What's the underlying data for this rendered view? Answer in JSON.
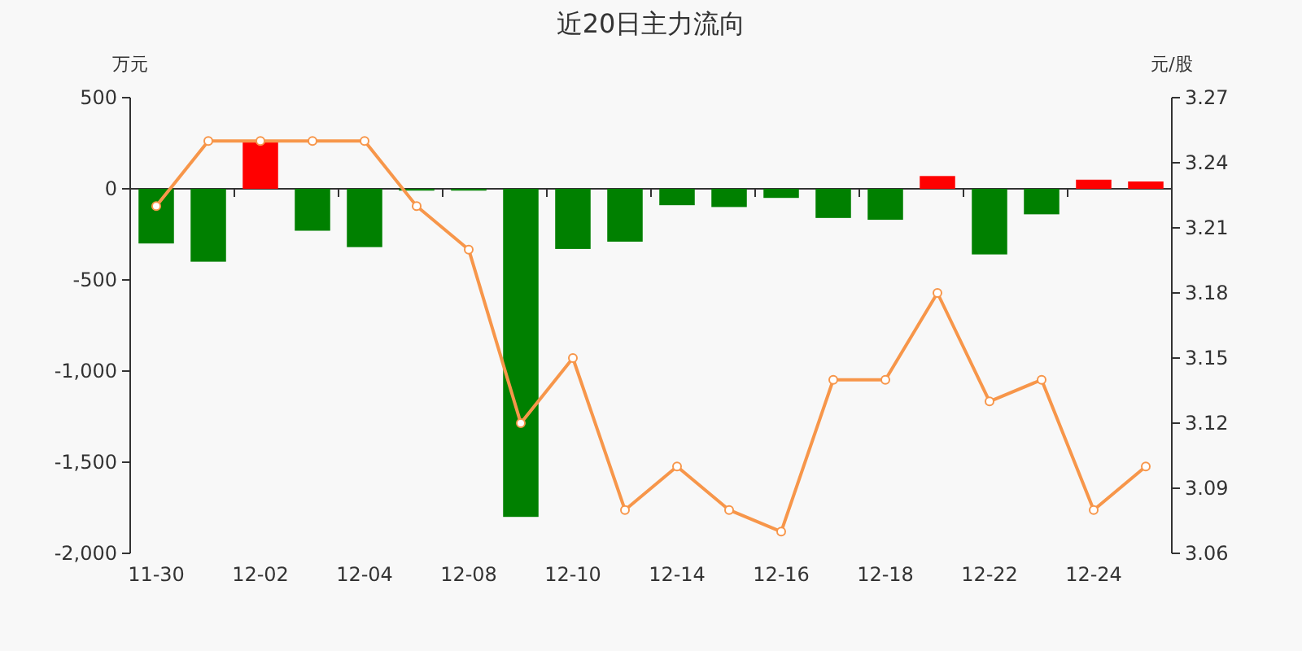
{
  "chart_data": {
    "type": "bar",
    "title": "近20日主力流向",
    "ylabel": "万元",
    "y2label": "元/股",
    "categories": [
      "11-30",
      null,
      "12-02",
      null,
      "12-04",
      null,
      "12-08",
      null,
      "12-10",
      null,
      "12-14",
      null,
      "12-16",
      null,
      "12-18",
      null,
      "12-22",
      null,
      "12-24",
      null
    ],
    "series": [
      {
        "axis": "y",
        "values": [
          -300,
          -400,
          260,
          -230,
          -320,
          -10,
          -10,
          -1800,
          -330,
          -290,
          -90,
          -100,
          -50,
          -160,
          -170,
          70,
          -360,
          -140,
          50,
          40
        ],
        "colors": [
          "#008000",
          "#008000",
          "#ff0000",
          "#008000",
          "#008000",
          "#008000",
          "#008000",
          "#008000",
          "#008000",
          "#008000",
          "#008000",
          "#008000",
          "#008000",
          "#008000",
          "#008000",
          "#ff0000",
          "#008000",
          "#008000",
          "#ff0000",
          "#ff0000"
        ]
      },
      {
        "type": "line",
        "axis": "y2",
        "color": "#f7964a",
        "marker": "circle",
        "values": [
          3.22,
          3.25,
          3.25,
          3.25,
          3.25,
          3.22,
          3.2,
          3.12,
          3.15,
          3.08,
          3.1,
          3.08,
          3.07,
          3.14,
          3.14,
          3.18,
          3.13,
          3.14,
          3.08,
          3.1
        ]
      }
    ],
    "ylim": [
      -2000,
      500
    ],
    "yticks": [
      {
        "value": -2000,
        "label": "-2,000"
      },
      {
        "value": -1500,
        "label": "-1,500"
      },
      {
        "value": -1000,
        "label": "-1,000"
      },
      -500,
      0,
      500
    ],
    "y2lim": [
      3.06,
      3.27
    ],
    "y2ticks": [
      3.06,
      3.09,
      3.12,
      3.15,
      3.18,
      3.21,
      3.24,
      3.27
    ]
  }
}
